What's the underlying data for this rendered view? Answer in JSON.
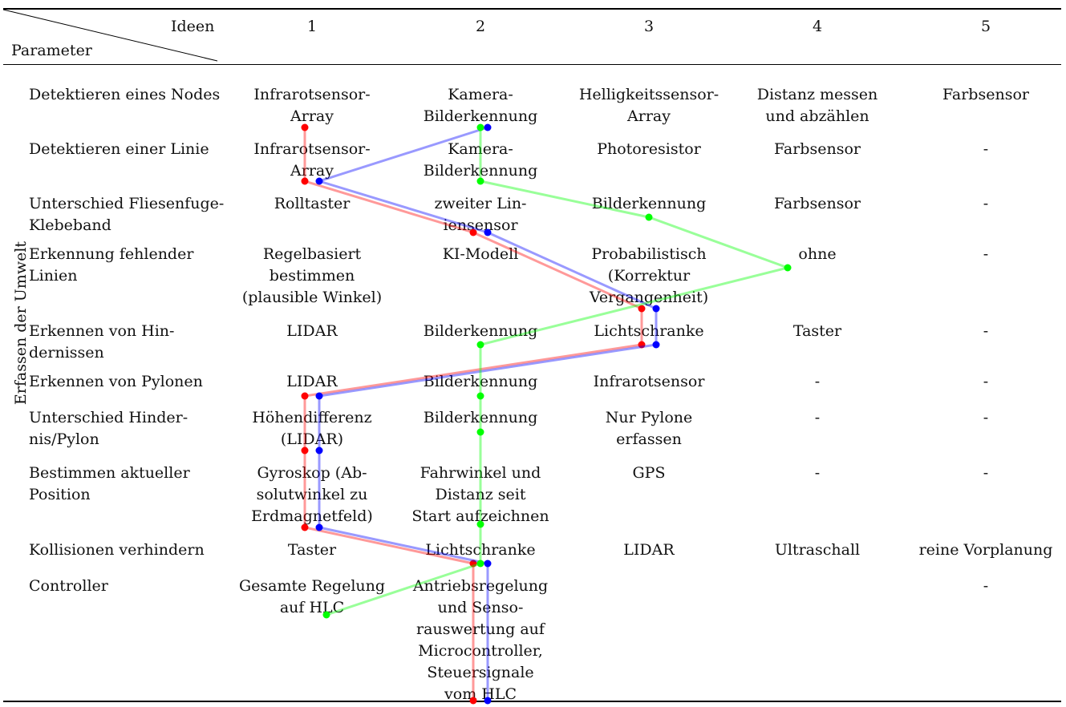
{
  "header": {
    "corner_top": "Ideen",
    "corner_bottom": "Parameter",
    "ideas": [
      "1",
      "2",
      "3",
      "4",
      "5"
    ]
  },
  "group_label": "Erfassen der Umwelt",
  "rows": [
    {
      "param": [
        "Detektieren eines Nodes"
      ],
      "cells": [
        [
          "Infrarotsensor-",
          "Array"
        ],
        [
          "Kamera-",
          "Bilderkennung"
        ],
        [
          "Helligkeitssensor-",
          "Array"
        ],
        [
          "Distanz messen",
          "und abzählen"
        ],
        [
          "Farbsensor"
        ]
      ]
    },
    {
      "param": [
        "Detektieren einer Linie"
      ],
      "cells": [
        [
          "Infrarotsensor-",
          "Array"
        ],
        [
          "Kamera-",
          "Bilderkennung"
        ],
        [
          "Photoresistor"
        ],
        [
          "Farbsensor"
        ],
        [
          "-"
        ]
      ]
    },
    {
      "param": [
        "Unterschied Fliesenfuge-",
        "Klebeband"
      ],
      "cells": [
        [
          "Rolltaster"
        ],
        [
          "zweiter Lin-",
          "iensensor"
        ],
        [
          "Bilderkennung"
        ],
        [
          "Farbsensor"
        ],
        [
          "-"
        ]
      ]
    },
    {
      "param": [
        "Erkennung fehlender",
        "Linien"
      ],
      "cells": [
        [
          "Regelbasiert",
          "bestimmen",
          "(plausible Winkel)"
        ],
        [
          "KI-Modell"
        ],
        [
          "Probabilistisch",
          "(Korrektur",
          "Vergangenheit)"
        ],
        [
          "ohne"
        ],
        [
          "-"
        ]
      ]
    },
    {
      "param": [
        "Erkennen von Hin-",
        "dernissen"
      ],
      "cells": [
        [
          "LIDAR"
        ],
        [
          "Bilderkennung"
        ],
        [
          "Lichtschranke"
        ],
        [
          "Taster"
        ],
        [
          "-"
        ]
      ]
    },
    {
      "param": [
        "Erkennen von Pylonen"
      ],
      "cells": [
        [
          "LIDAR"
        ],
        [
          "Bilderkennung"
        ],
        [
          "Infrarotsensor"
        ],
        [
          "-"
        ],
        [
          "-"
        ]
      ]
    },
    {
      "param": [
        "Unterschied Hinder-",
        "nis/Pylon"
      ],
      "cells": [
        [
          "Höhendifferenz",
          "(LIDAR)"
        ],
        [
          "Bilderkennung"
        ],
        [
          "Nur Pylone",
          "erfassen"
        ],
        [
          "-"
        ],
        [
          "-"
        ]
      ]
    },
    {
      "param": [
        "Bestimmen aktueller",
        "Position"
      ],
      "cells": [
        [
          "Gyroskop (Ab-",
          "solutwinkel zu",
          "Erdmagnetfeld)"
        ],
        [
          "Fahrwinkel und",
          "Distanz seit",
          "Start aufzeichnen"
        ],
        [
          "GPS"
        ],
        [
          "-"
        ],
        [
          "-"
        ]
      ]
    },
    {
      "param": [
        "Kollisionen verhindern"
      ],
      "cells": [
        [
          "Taster"
        ],
        [
          "Lichtschranke"
        ],
        [
          "LIDAR"
        ],
        [
          "Ultraschall"
        ],
        [
          "reine Vorplanung"
        ]
      ]
    },
    {
      "param": [
        "Controller"
      ],
      "cells": [
        [
          "Gesamte Regelung",
          "auf HLC"
        ],
        [
          "Antriebsregelung",
          "und Senso-",
          "rauswertung auf",
          "Microcontroller,",
          "Steuersignale",
          "vom HLC"
        ],
        [],
        [],
        [
          "-"
        ]
      ]
    }
  ],
  "combinations": [
    {
      "color": "#ff0000",
      "choice_per_row": [
        "1",
        "1",
        "2",
        "3",
        "3",
        "1",
        "1",
        "1",
        "2",
        "2"
      ]
    },
    {
      "color": "#0000ff",
      "choice_per_row": [
        "2",
        "1",
        "2",
        "3",
        "3",
        "1",
        "1",
        "1",
        "2",
        "2"
      ]
    },
    {
      "color": "#00ff00",
      "choice_per_row": [
        "2",
        "2",
        "3",
        "4",
        "2",
        "2",
        "2",
        "2",
        "2",
        "1"
      ]
    }
  ]
}
